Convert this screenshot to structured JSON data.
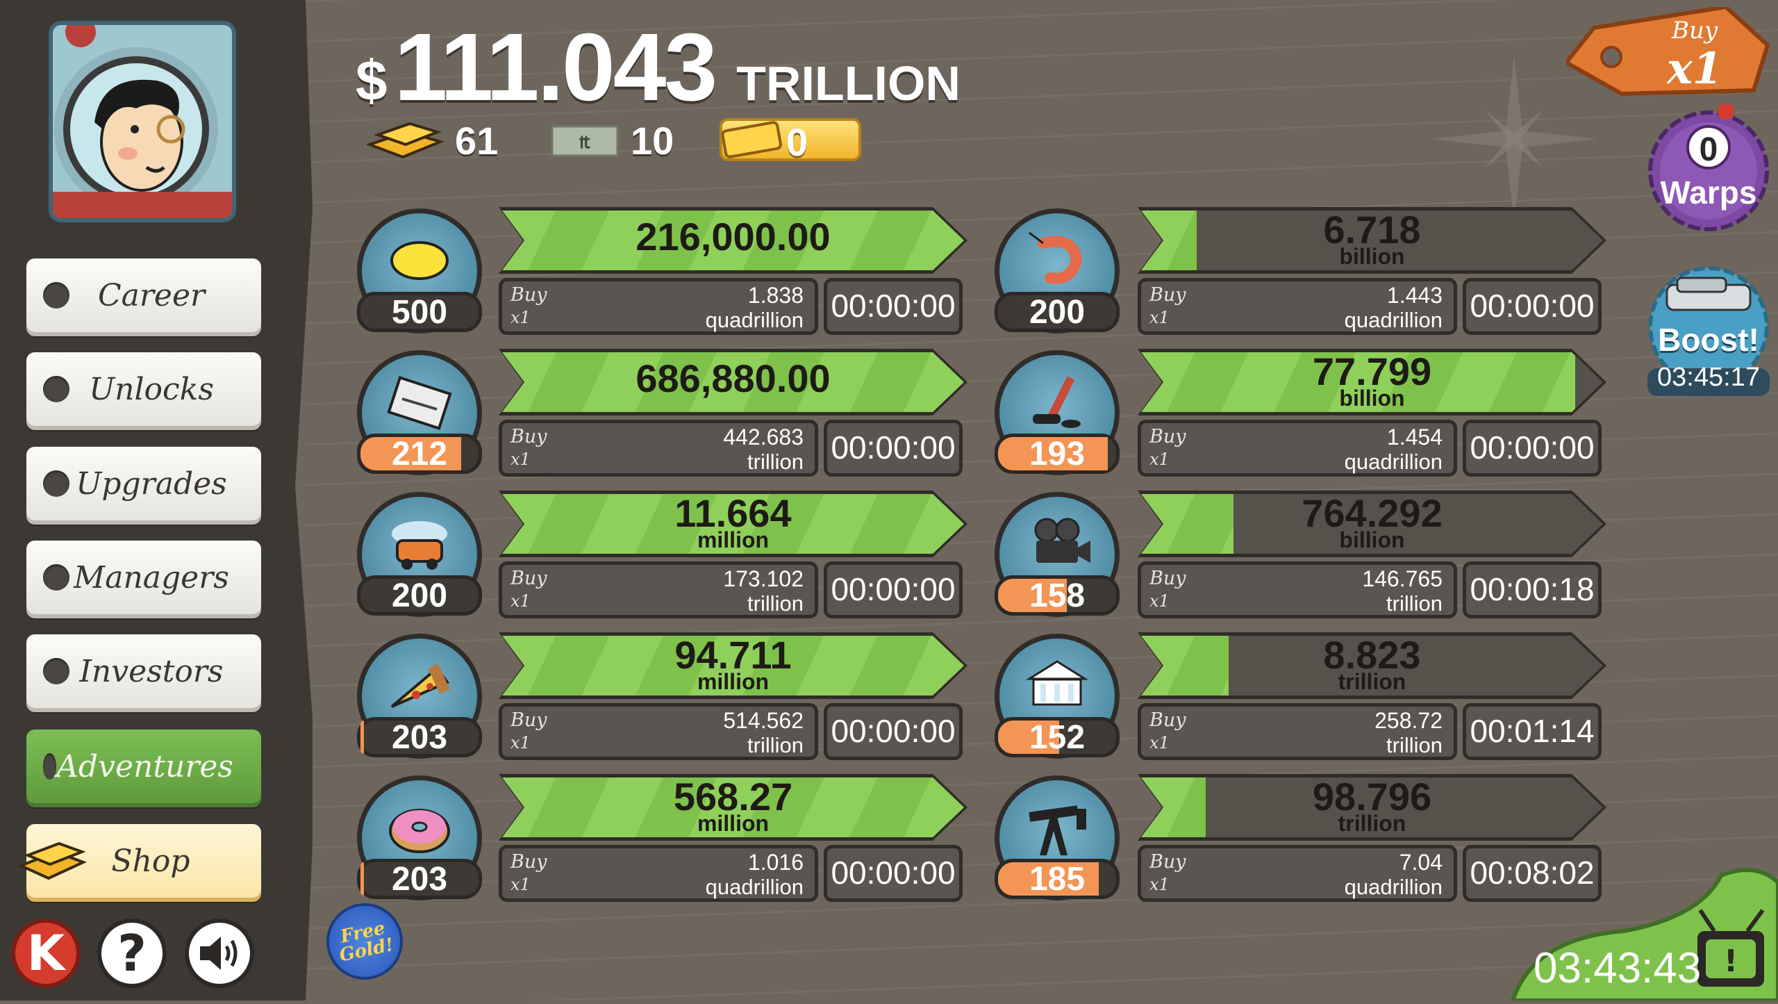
{
  "header": {
    "currency_symbol": "$",
    "money_value": "111.043",
    "money_unit": "TRILLION",
    "gold_count": "61",
    "megabucks_count": "10",
    "tickets_count": "0"
  },
  "sidebar": {
    "items": [
      {
        "label": "Career"
      },
      {
        "label": "Unlocks"
      },
      {
        "label": "Upgrades"
      },
      {
        "label": "Managers"
      },
      {
        "label": "Investors"
      },
      {
        "label": "Adventures"
      },
      {
        "label": "Shop"
      }
    ],
    "k_label": "K",
    "help_label": "?",
    "free_gold_label": "Free Gold!"
  },
  "businesses": [
    {
      "icon": "lemon-icon",
      "count": "500",
      "level_fill": 0,
      "revenue": "216,000.00",
      "revenue_unit": "",
      "progress": 1.0,
      "buy_label": "Buy",
      "buy_mult": "x1",
      "cost": "1.838",
      "cost_unit": "quadrillion",
      "timer": "00:00:00"
    },
    {
      "icon": "newspaper-icon",
      "count": "212",
      "level_fill": 0.85,
      "revenue": "686,880.00",
      "revenue_unit": "",
      "progress": 1.0,
      "buy_label": "Buy",
      "buy_mult": "x1",
      "cost": "442.683",
      "cost_unit": "trillion",
      "timer": "00:00:00"
    },
    {
      "icon": "car-wash-icon",
      "count": "200",
      "level_fill": 0,
      "revenue": "11.664",
      "revenue_unit": "million",
      "progress": 1.0,
      "buy_label": "Buy",
      "buy_mult": "x1",
      "cost": "173.102",
      "cost_unit": "trillion",
      "timer": "00:00:00"
    },
    {
      "icon": "pizza-icon",
      "count": "203",
      "level_fill": 0.03,
      "revenue": "94.711",
      "revenue_unit": "million",
      "progress": 1.0,
      "buy_label": "Buy",
      "buy_mult": "x1",
      "cost": "514.562",
      "cost_unit": "trillion",
      "timer": "00:00:00"
    },
    {
      "icon": "donut-icon",
      "count": "203",
      "level_fill": 0.03,
      "revenue": "568.27",
      "revenue_unit": "million",
      "progress": 1.0,
      "buy_label": "Buy",
      "buy_mult": "x1",
      "cost": "1.016",
      "cost_unit": "quadrillion",
      "timer": "00:00:00"
    },
    {
      "icon": "shrimp-icon",
      "count": "200",
      "level_fill": 0,
      "revenue": "6.718",
      "revenue_unit": "billion",
      "progress": 0.12,
      "buy_label": "Buy",
      "buy_mult": "x1",
      "cost": "1.443",
      "cost_unit": "quadrillion",
      "timer": "00:00:00"
    },
    {
      "icon": "hockey-icon",
      "count": "193",
      "level_fill": 0.93,
      "revenue": "77.799",
      "revenue_unit": "billion",
      "progress": 0.94,
      "buy_label": "Buy",
      "buy_mult": "x1",
      "cost": "1.454",
      "cost_unit": "quadrillion",
      "timer": "00:00:00"
    },
    {
      "icon": "movie-camera-icon",
      "count": "158",
      "level_fill": 0.58,
      "revenue": "764.292",
      "revenue_unit": "billion",
      "progress": 0.2,
      "buy_label": "Buy",
      "buy_mult": "x1",
      "cost": "146.765",
      "cost_unit": "trillion",
      "timer": "00:00:18"
    },
    {
      "icon": "bank-icon",
      "count": "152",
      "level_fill": 0.52,
      "revenue": "8.823",
      "revenue_unit": "trillion",
      "progress": 0.19,
      "buy_label": "Buy",
      "buy_mult": "x1",
      "cost": "258.72",
      "cost_unit": "trillion",
      "timer": "00:01:14"
    },
    {
      "icon": "oil-derrick-icon",
      "count": "185",
      "level_fill": 0.85,
      "revenue": "98.796",
      "revenue_unit": "trillion",
      "progress": 0.14,
      "buy_label": "Buy",
      "buy_mult": "x1",
      "cost": "7.04",
      "cost_unit": "quadrillion",
      "timer": "00:08:02"
    }
  ],
  "right": {
    "buy_tag_top": "Buy",
    "buy_tag_mult": "x1",
    "warps_count": "0",
    "warps_label": "Warps",
    "boost_label": "Boost!",
    "boost_timer": "03:45:17",
    "tv_timer": "03:43:43"
  }
}
